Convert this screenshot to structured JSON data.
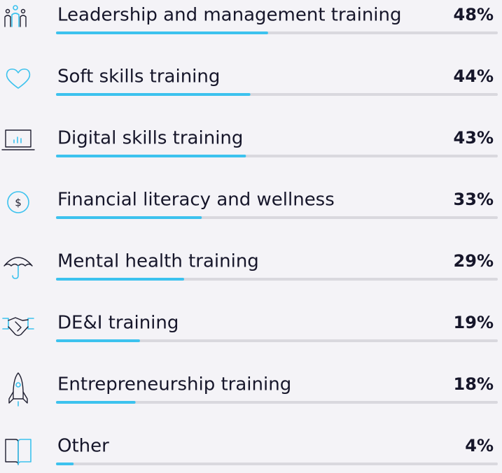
{
  "chart_data": {
    "type": "bar",
    "orientation": "horizontal",
    "categories": [
      "Leadership and management training",
      "Soft skills training",
      "Digital skills training",
      "Financial literacy and wellness",
      "Mental health training",
      "DE&I training",
      "Entrepreneurship training",
      "Other"
    ],
    "values": [
      48,
      44,
      43,
      33,
      29,
      19,
      18,
      4
    ],
    "value_labels": [
      "48%",
      "44%",
      "43%",
      "33%",
      "29%",
      "19%",
      "18%",
      "4%"
    ],
    "xlim": [
      0,
      100
    ],
    "color": "#3cc2ee",
    "track_color": "#d9d8de"
  }
}
